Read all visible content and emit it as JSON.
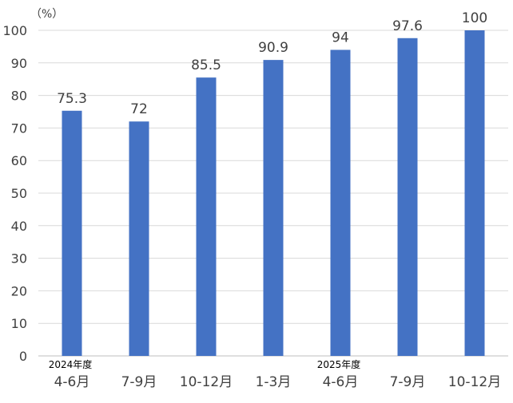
{
  "chart_data": {
    "type": "bar",
    "unit_label": "（%）",
    "categories": [
      "4-6月",
      "7-9月",
      "10-12月",
      "1-3月",
      "4-6月",
      "7-9月",
      "10-12月"
    ],
    "year_labels": [
      {
        "category_index": 0,
        "label": "2024年度"
      },
      {
        "category_index": 4,
        "label": "2025年度"
      }
    ],
    "values": [
      75.3,
      72,
      85.5,
      90.9,
      94,
      97.6,
      100
    ],
    "data_labels": [
      "75.3",
      "72",
      "85.5",
      "90.9",
      "94",
      "97.6",
      "100"
    ],
    "yticks": [
      "0",
      "10",
      "20",
      "30",
      "40",
      "50",
      "60",
      "70",
      "80",
      "90",
      "100"
    ],
    "ylim": [
      0,
      100
    ],
    "grid": true,
    "legend": "none",
    "colors": {
      "bar": "#4472C4",
      "grid": "#D9D9D9",
      "text": "#404040"
    }
  }
}
